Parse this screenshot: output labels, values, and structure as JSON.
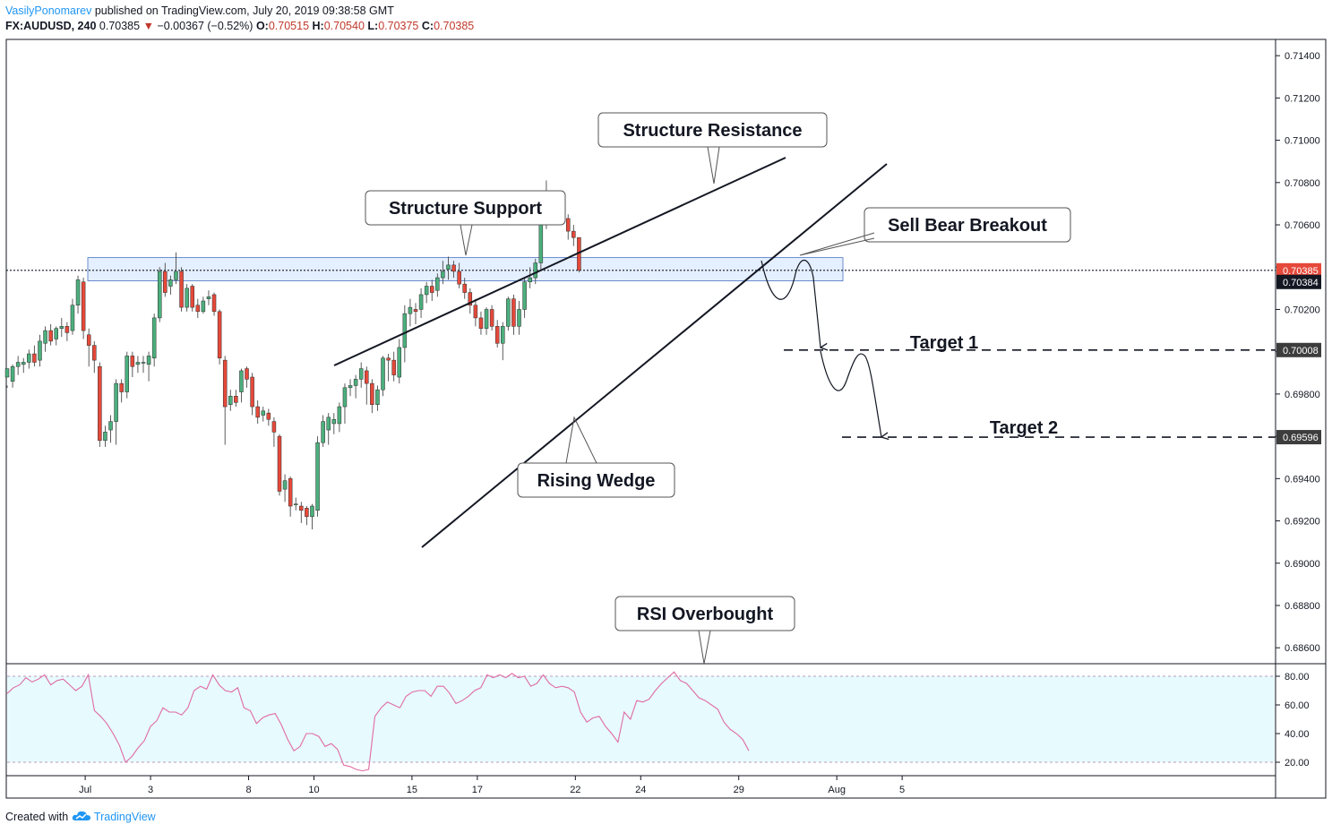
{
  "header": {
    "author": "VasilyPonomarev",
    "published": "published on TradingView.com, July 20, 2019 09:38:58 GMT",
    "symbol": "FX:AUDUSD, 240",
    "last": "0.70385",
    "change_arrow": "▼",
    "change": "−0.00367 (−0.52%)",
    "o_label": "O:",
    "o_val": "0.70515",
    "h_label": "H:",
    "h_val": "0.70540",
    "l_label": "L:",
    "l_val": "0.70375",
    "c_label": "C:",
    "c_val": "0.70385"
  },
  "footer": {
    "created_with": "Created with",
    "brand": "TradingView"
  },
  "colors": {
    "up": "#4caf7d",
    "down": "#e5493a",
    "rsi_line": "#e06aa3",
    "rsi_band": "#e7fbff",
    "zone": "#dbe9ff"
  },
  "chart_data": {
    "type": "candlestick",
    "symbol": "FX:AUDUSD",
    "interval": "240",
    "y_ticks": [
      "0.71400",
      "0.71200",
      "0.71000",
      "0.70800",
      "0.70600",
      "0.70400",
      "0.70200",
      "0.70000",
      "0.69800",
      "0.69600",
      "0.69400",
      "0.69200",
      "0.69000",
      "0.68800",
      "0.68600"
    ],
    "ylim": [
      0.6855,
      0.7146
    ],
    "x_ticks": [
      {
        "label": "Jul",
        "i": 14
      },
      {
        "label": "3",
        "i": 26
      },
      {
        "label": "8",
        "i": 44
      },
      {
        "label": "10",
        "i": 56
      },
      {
        "label": "15",
        "i": 74
      },
      {
        "label": "17",
        "i": 86
      },
      {
        "label": "22",
        "i": 104
      },
      {
        "label": "24",
        "i": 116
      },
      {
        "label": "29",
        "i": 134
      },
      {
        "label": "Aug",
        "i": 152
      },
      {
        "label": "5",
        "i": 164
      }
    ],
    "price_badges": [
      {
        "label": "0.70385",
        "value": 0.70385,
        "style": "red"
      },
      {
        "label": "0.70384",
        "value": 0.7033,
        "style": "black"
      },
      {
        "label": "0.70008",
        "value": 0.70008,
        "style": "dark"
      },
      {
        "label": "0.69596",
        "value": 0.69596,
        "style": "dark"
      }
    ],
    "candles": [
      [
        0.6988,
        0.6992,
        0.6984,
        0.6983
      ],
      [
        0.6986,
        0.6993,
        0.6994,
        0.6983
      ],
      [
        0.6993,
        0.6995,
        0.6998,
        0.6989
      ],
      [
        0.6994,
        0.6995,
        0.6997,
        0.699
      ],
      [
        0.6995,
        0.6999,
        0.7001,
        0.6992
      ],
      [
        0.6999,
        0.6995,
        0.7003,
        0.6993
      ],
      [
        0.6996,
        0.7005,
        0.7008,
        0.6993
      ],
      [
        0.7004,
        0.701,
        0.7012,
        0.7
      ],
      [
        0.701,
        0.7005,
        0.7013,
        0.7003
      ],
      [
        0.7006,
        0.7011,
        0.7012,
        0.7003
      ],
      [
        0.7011,
        0.7012,
        0.7016,
        0.7007
      ],
      [
        0.7012,
        0.7009,
        0.7014,
        0.7005
      ],
      [
        0.701,
        0.7022,
        0.7025,
        0.7008
      ],
      [
        0.7022,
        0.7034,
        0.7036,
        0.7018
      ],
      [
        0.7033,
        0.701,
        0.7035,
        0.7006
      ],
      [
        0.7008,
        0.7003,
        0.7011,
        0.6993
      ],
      [
        0.7003,
        0.6996,
        0.7005,
        0.699
      ],
      [
        0.6993,
        0.6958,
        0.6995,
        0.6955
      ],
      [
        0.6958,
        0.6962,
        0.6965,
        0.6955
      ],
      [
        0.6963,
        0.6967,
        0.697,
        0.6957
      ],
      [
        0.6967,
        0.6985,
        0.6987,
        0.6956
      ],
      [
        0.6985,
        0.6981,
        0.6987,
        0.6976
      ],
      [
        0.6981,
        0.6998,
        0.7,
        0.6978
      ],
      [
        0.6998,
        0.6993,
        0.7,
        0.6988
      ],
      [
        0.6994,
        0.6995,
        0.6998,
        0.699
      ],
      [
        0.6995,
        0.6995,
        0.6998,
        0.699
      ],
      [
        0.6994,
        0.6998,
        0.7,
        0.6986
      ],
      [
        0.6997,
        0.7016,
        0.7018,
        0.6993
      ],
      [
        0.7016,
        0.7038,
        0.704,
        0.7014
      ],
      [
        0.7038,
        0.7028,
        0.7042,
        0.7026
      ],
      [
        0.7031,
        0.7034,
        0.7036,
        0.7027
      ],
      [
        0.7034,
        0.7038,
        0.7047,
        0.7032
      ],
      [
        0.7038,
        0.7021,
        0.704,
        0.7019
      ],
      [
        0.7021,
        0.703,
        0.7032,
        0.7019
      ],
      [
        0.7031,
        0.7021,
        0.7032,
        0.7019
      ],
      [
        0.7022,
        0.7019,
        0.7025,
        0.7016
      ],
      [
        0.7019,
        0.7024,
        0.7026,
        0.7018
      ],
      [
        0.7025,
        0.7026,
        0.7029,
        0.7022
      ],
      [
        0.7027,
        0.7019,
        0.7028,
        0.7017
      ],
      [
        0.7019,
        0.6997,
        0.702,
        0.6994
      ],
      [
        0.6996,
        0.6974,
        0.6998,
        0.6956
      ],
      [
        0.6975,
        0.6979,
        0.6982,
        0.6972
      ],
      [
        0.6979,
        0.6976,
        0.6982,
        0.6974
      ],
      [
        0.6981,
        0.6991,
        0.6992,
        0.6976
      ],
      [
        0.6992,
        0.6987,
        0.6993,
        0.6983
      ],
      [
        0.6988,
        0.6974,
        0.699,
        0.697
      ],
      [
        0.6974,
        0.6969,
        0.6977,
        0.6966
      ],
      [
        0.697,
        0.6972,
        0.6974,
        0.6967
      ],
      [
        0.6971,
        0.6968,
        0.6973,
        0.6965
      ],
      [
        0.6967,
        0.6962,
        0.6969,
        0.6955
      ],
      [
        0.696,
        0.6934,
        0.6961,
        0.6932
      ],
      [
        0.6935,
        0.6939,
        0.6942,
        0.6929
      ],
      [
        0.694,
        0.6927,
        0.6941,
        0.6922
      ],
      [
        0.6928,
        0.6928,
        0.6931,
        0.6925
      ],
      [
        0.6927,
        0.6925,
        0.6929,
        0.6919
      ],
      [
        0.6926,
        0.6922,
        0.6927,
        0.6918
      ],
      [
        0.6922,
        0.6927,
        0.6928,
        0.6916
      ],
      [
        0.6925,
        0.6957,
        0.696,
        0.6922
      ],
      [
        0.6957,
        0.6967,
        0.697,
        0.6955
      ],
      [
        0.6963,
        0.6969,
        0.6971,
        0.6956
      ],
      [
        0.6966,
        0.6968,
        0.6971,
        0.6961
      ],
      [
        0.6966,
        0.6974,
        0.6976,
        0.6962
      ],
      [
        0.6974,
        0.6983,
        0.6985,
        0.6966
      ],
      [
        0.6983,
        0.6984,
        0.6987,
        0.6979
      ],
      [
        0.6984,
        0.6987,
        0.6989,
        0.6978
      ],
      [
        0.6987,
        0.6992,
        0.6995,
        0.6983
      ],
      [
        0.6991,
        0.6985,
        0.6993,
        0.6975
      ],
      [
        0.6985,
        0.6975,
        0.6987,
        0.6971
      ],
      [
        0.6975,
        0.6982,
        0.6984,
        0.6972
      ],
      [
        0.6982,
        0.6997,
        0.6998,
        0.6979
      ],
      [
        0.6997,
        0.6996,
        0.6999,
        0.6986
      ],
      [
        0.6996,
        0.6989,
        0.7,
        0.6986
      ],
      [
        0.6988,
        0.7002,
        0.7006,
        0.6985
      ],
      [
        0.7002,
        0.7018,
        0.7022,
        0.6995
      ],
      [
        0.7018,
        0.7021,
        0.7025,
        0.7012
      ],
      [
        0.702,
        0.7019,
        0.7023,
        0.7013
      ],
      [
        0.702,
        0.7027,
        0.703,
        0.7016
      ],
      [
        0.7027,
        0.7031,
        0.7033,
        0.7023
      ],
      [
        0.7031,
        0.7028,
        0.7034,
        0.7024
      ],
      [
        0.7029,
        0.7035,
        0.7037,
        0.7026
      ],
      [
        0.7035,
        0.7038,
        0.7043,
        0.7032
      ],
      [
        0.7039,
        0.7041,
        0.7045,
        0.7034
      ],
      [
        0.7041,
        0.7038,
        0.7043,
        0.7035
      ],
      [
        0.7038,
        0.7032,
        0.7042,
        0.703
      ],
      [
        0.7032,
        0.7028,
        0.7035,
        0.7025
      ],
      [
        0.7028,
        0.7022,
        0.703,
        0.7018
      ],
      [
        0.7022,
        0.7016,
        0.7025,
        0.7012
      ],
      [
        0.7016,
        0.7011,
        0.7019,
        0.7008
      ],
      [
        0.7011,
        0.702,
        0.7021,
        0.7008
      ],
      [
        0.702,
        0.7012,
        0.7022,
        0.701
      ],
      [
        0.7012,
        0.7004,
        0.7015,
        0.7002
      ],
      [
        0.7004,
        0.7012,
        0.7014,
        0.6996
      ],
      [
        0.7012,
        0.7025,
        0.7026,
        0.701
      ],
      [
        0.7025,
        0.7012,
        0.7027,
        0.7008
      ],
      [
        0.7012,
        0.702,
        0.7024,
        0.7008
      ],
      [
        0.702,
        0.7033,
        0.7035,
        0.7016
      ],
      [
        0.7033,
        0.7035,
        0.704,
        0.703
      ],
      [
        0.7035,
        0.7042,
        0.7044,
        0.7032
      ],
      [
        0.7042,
        0.7073,
        0.7076,
        0.7038
      ],
      [
        0.7073,
        0.7075,
        0.7081,
        0.7058
      ],
      [
        0.7075,
        0.7071,
        0.7076,
        0.7063
      ],
      [
        0.7071,
        0.7068,
        0.7073,
        0.7065
      ],
      [
        0.7068,
        0.7063,
        0.707,
        0.7061
      ],
      [
        0.7063,
        0.7057,
        0.7065,
        0.7053
      ],
      [
        0.7057,
        0.7054,
        0.706,
        0.705
      ],
      [
        0.7054,
        0.70385,
        0.7054,
        0.70375
      ]
    ],
    "rsi": {
      "ticks": [
        "80.00",
        "60.00",
        "40.00",
        "20.00"
      ],
      "ylim": [
        10,
        88
      ],
      "overbought": 80,
      "oversold": 20,
      "values": [
        68,
        72,
        74,
        79,
        76,
        78,
        81,
        74,
        77,
        78,
        74,
        70,
        73,
        81,
        56,
        52,
        47,
        40,
        32,
        20,
        24,
        30,
        35,
        45,
        49,
        58,
        55,
        55,
        53,
        58,
        70,
        73,
        71,
        81,
        74,
        70,
        69,
        72,
        58,
        56,
        47,
        51,
        53,
        54,
        46,
        36,
        28,
        31,
        40,
        40,
        38,
        31,
        33,
        29,
        18,
        17,
        15,
        14,
        15,
        52,
        58,
        62,
        60,
        58,
        66,
        69,
        70,
        70,
        66,
        73,
        73,
        68,
        61,
        63,
        66,
        70,
        72,
        81,
        79,
        81,
        79,
        82,
        79,
        80,
        73,
        75,
        81,
        75,
        72,
        73,
        72,
        69,
        55,
        48,
        51,
        52,
        45,
        40,
        34,
        55,
        50,
        63,
        62,
        64,
        70,
        75,
        79,
        83,
        77,
        75,
        70,
        65,
        63,
        60,
        57,
        48,
        43,
        40,
        36,
        28
      ],
      "values_note": ""
    },
    "annotations": {
      "structure_resistance": "Structure Resistance",
      "structure_support": "Structure Support",
      "sell_bear_breakout": "Sell Bear Breakout",
      "rising_wedge": "Rising Wedge",
      "target_1": "Target 1",
      "target_2": "Target 2",
      "rsi_overbought": "RSI Overbought"
    },
    "support_zone": [
      0.70335,
      0.70445
    ],
    "target_1_price": 0.70008,
    "target_2_price": 0.69596
  }
}
